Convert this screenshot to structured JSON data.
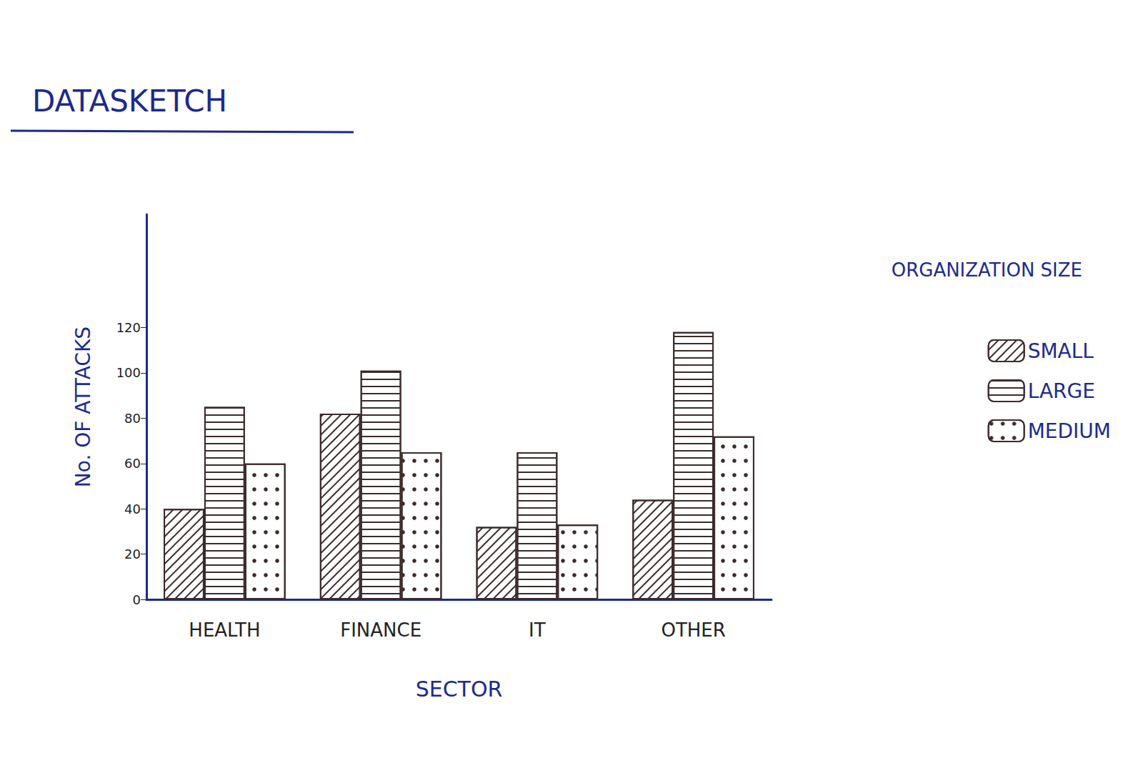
{
  "chart_data": {
    "type": "bar",
    "title": "DATASKETCH",
    "x_label": "SECTOR",
    "y_label": "No. OF ATTACKS",
    "legend_title": "ORGANIZATION SIZE",
    "categories": [
      "HEALTH",
      "FINANCE",
      "IT",
      "OTHER"
    ],
    "series": [
      {
        "name": "SMALL",
        "color": "#3b2b2b",
        "values": [
          40,
          82,
          32,
          44
        ]
      },
      {
        "name": "LARGE",
        "color": "#3b2b2b",
        "values": [
          85,
          101,
          65,
          118
        ]
      },
      {
        "name": "MEDIUM",
        "color": "#3b2b2b",
        "values": [
          60,
          65,
          33,
          72
        ]
      }
    ],
    "ylim": [
      0,
      170
    ],
    "yticks": [
      0,
      20,
      40,
      60,
      80,
      100,
      120
    ],
    "grid": false,
    "legend": "right"
  }
}
